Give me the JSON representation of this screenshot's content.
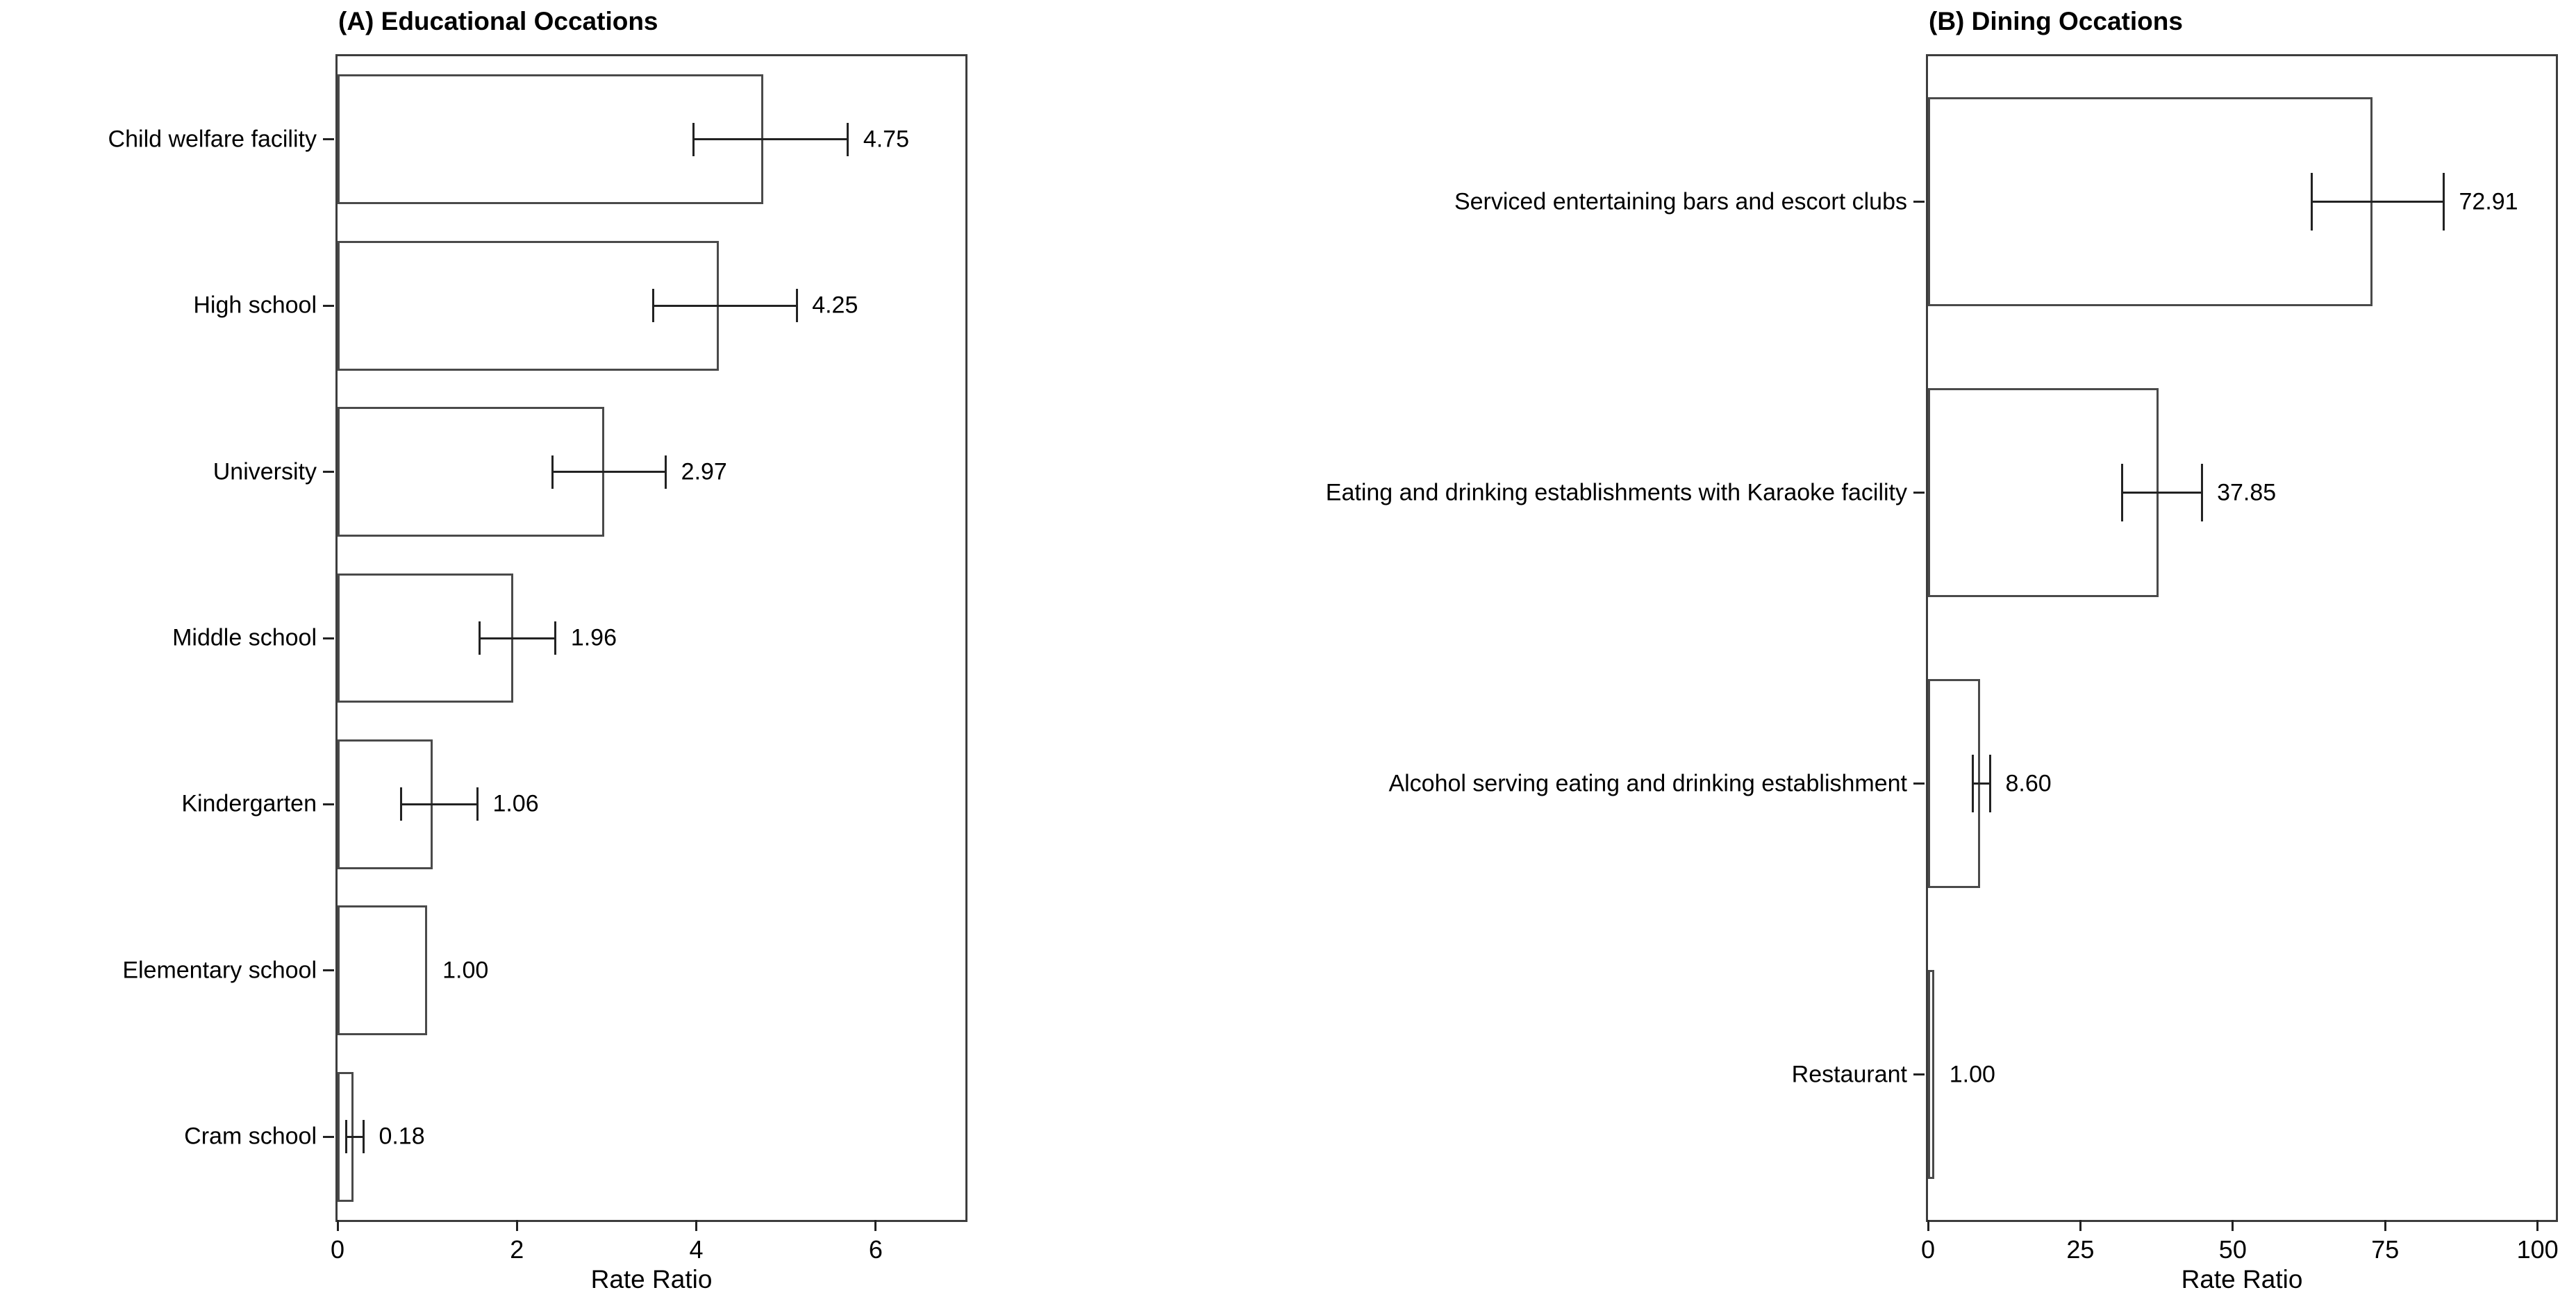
{
  "figure": {
    "background": "#ffffff",
    "text_color": "#000000",
    "bar_fill": "#ffffff",
    "bar_border": "#4a4a4a",
    "axis_color": "#3d3d3d"
  },
  "chart_data": [
    {
      "type": "bar",
      "orientation": "horizontal",
      "title": "(A) Educational Occations",
      "xlabel": "Rate Ratio",
      "xlim": [
        0,
        7
      ],
      "xticks": [
        0,
        2,
        4,
        6
      ],
      "grid": false,
      "legend": null,
      "categories": [
        "Child welfare facility",
        "High school",
        "University",
        "Middle school",
        "Kindergarten",
        "Elementary school",
        "Cram school"
      ],
      "values": [
        4.75,
        4.25,
        2.97,
        1.96,
        1.06,
        1.0,
        0.18
      ],
      "value_labels": [
        "4.75",
        "4.25",
        "2.97",
        "1.96",
        "1.06",
        "1.00",
        "0.18"
      ],
      "error_low": [
        3.97,
        3.52,
        2.4,
        1.58,
        0.71,
        null,
        0.1
      ],
      "error_high": [
        5.69,
        5.12,
        3.66,
        2.43,
        1.56,
        null,
        0.29
      ]
    },
    {
      "type": "bar",
      "orientation": "horizontal",
      "title": "(B) Dining Occations",
      "xlabel": "Rate Ratio",
      "xlim": [
        0,
        103
      ],
      "xticks": [
        0,
        25,
        50,
        75,
        100
      ],
      "grid": false,
      "legend": null,
      "categories": [
        "Serviced entertaining bars and escort clubs",
        "Eating and drinking establishments with Karaoke facility",
        "Alcohol serving eating and drinking establishment",
        "Restaurant"
      ],
      "values": [
        72.91,
        37.85,
        8.6,
        1.0
      ],
      "value_labels": [
        "72.91",
        "37.85",
        "8.60",
        "1.00"
      ],
      "error_low": [
        62.9,
        31.9,
        7.3,
        null
      ],
      "error_high": [
        84.6,
        44.9,
        10.2,
        null
      ]
    }
  ]
}
